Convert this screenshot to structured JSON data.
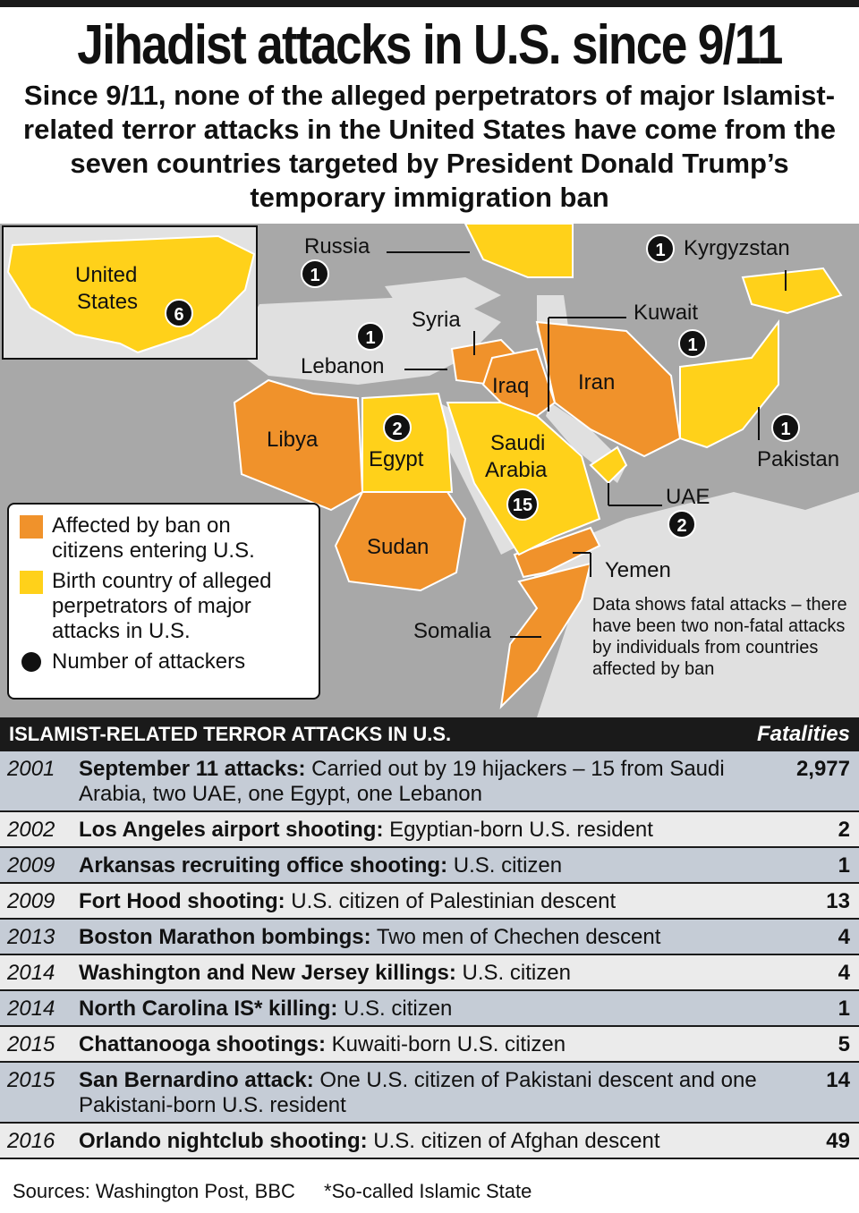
{
  "title": "Jihadist attacks in U.S. since 9/11",
  "subtitle": "Since 9/11, none of the alleged perpetrators of major Islamist-related terror attacks in the United States have come from the seven countries targeted by President Donald Trump’s temporary immigration ban",
  "colors": {
    "ban": "#f0922b",
    "birth": "#ffd11a",
    "land": "#a8a8a8",
    "sea": "#e0e0e0",
    "badge": "#111111"
  },
  "map": {
    "inset": {
      "label_line1": "United",
      "label_line2": "States",
      "count": "6"
    },
    "labels": {
      "russia": "Russia",
      "kyrgyzstan": "Kyrgyzstan",
      "syria": "Syria",
      "kuwait": "Kuwait",
      "lebanon": "Lebanon",
      "iraq": "Iraq",
      "iran": "Iran",
      "libya": "Libya",
      "egypt": "Egypt",
      "saudi1": "Saudi",
      "saudi2": "Arabia",
      "pakistan": "Pakistan",
      "uae": "UAE",
      "sudan": "Sudan",
      "yemen": "Yemen",
      "somalia": "Somalia"
    },
    "counts": {
      "russia": "1",
      "kyrgyzstan": "1",
      "lebanon": "1",
      "kuwait": "1",
      "egypt": "2",
      "saudi": "15",
      "pakistan": "1",
      "uae": "2"
    },
    "note": "Data shows fatal attacks – there have been two non-fatal attacks by individuals from countries affected by ban"
  },
  "legend": {
    "ban": "Affected by ban on citizens entering U.S.",
    "birth": "Birth country of alleged perpetrators of major attacks in U.S.",
    "count": "Number of attackers"
  },
  "table": {
    "header": "ISLAMIST-RELATED TERROR ATTACKS IN U.S.",
    "fatalities_header": "Fatalities",
    "rows": [
      {
        "year": "2001",
        "name": "September 11 attacks:",
        "desc": " Carried out by 19 hijackers – 15 from Saudi Arabia, two UAE, one Egypt, one Lebanon",
        "fatalities": "2,977"
      },
      {
        "year": "2002",
        "name": "Los Angeles airport shooting:",
        "desc": " Egyptian-born U.S. resident",
        "fatalities": "2"
      },
      {
        "year": "2009",
        "name": "Arkansas recruiting office shooting:",
        "desc": " U.S. citizen",
        "fatalities": "1"
      },
      {
        "year": "2009",
        "name": "Fort Hood shooting:",
        "desc": " U.S. citizen of Palestinian descent",
        "fatalities": "13"
      },
      {
        "year": "2013",
        "name": "Boston Marathon bombings:",
        "desc": " Two men of Chechen descent",
        "fatalities": "4"
      },
      {
        "year": "2014",
        "name": "Washington and New Jersey killings:",
        "desc": " U.S. citizen",
        "fatalities": "4"
      },
      {
        "year": "2014",
        "name": "North Carolina IS* killing:",
        "desc": " U.S. citizen",
        "fatalities": "1"
      },
      {
        "year": "2015",
        "name": "Chattanooga shootings:",
        "desc": " Kuwaiti-born U.S. citizen",
        "fatalities": "5"
      },
      {
        "year": "2015",
        "name": "San Bernardino attack:",
        "desc": " One U.S. citizen of Pakistani descent and one Pakistani-born U.S. resident",
        "fatalities": "14"
      },
      {
        "year": "2016",
        "name": "Orlando nightclub shooting:",
        "desc": " U.S. citizen of Afghan descent",
        "fatalities": "49"
      }
    ]
  },
  "footer": {
    "sources": "Sources: Washington Post, BBC",
    "footnote": "*So-called Islamic State"
  }
}
